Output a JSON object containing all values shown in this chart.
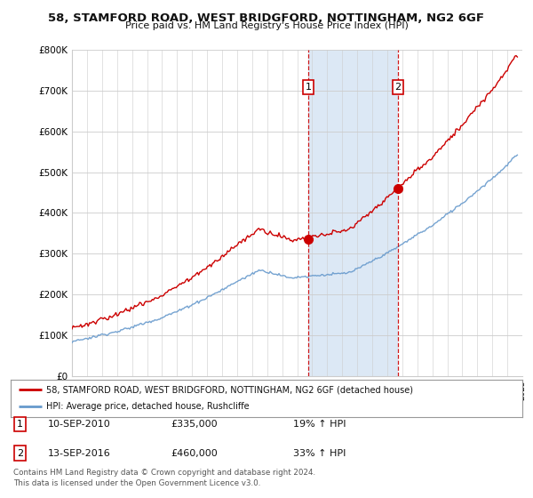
{
  "title": "58, STAMFORD ROAD, WEST BRIDGFORD, NOTTINGHAM, NG2 6GF",
  "subtitle": "Price paid vs. HM Land Registry's House Price Index (HPI)",
  "legend_line1": "58, STAMFORD ROAD, WEST BRIDGFORD, NOTTINGHAM, NG2 6GF (detached house)",
  "legend_line2": "HPI: Average price, detached house, Rushcliffe",
  "annotation1_label": "1",
  "annotation1_date": "10-SEP-2010",
  "annotation1_price": "£335,000",
  "annotation1_change": "19% ↑ HPI",
  "annotation2_label": "2",
  "annotation2_date": "13-SEP-2016",
  "annotation2_price": "£460,000",
  "annotation2_change": "33% ↑ HPI",
  "footnote1": "Contains HM Land Registry data © Crown copyright and database right 2024.",
  "footnote2": "This data is licensed under the Open Government Licence v3.0.",
  "property_color": "#cc0000",
  "hpi_color": "#6699cc",
  "background_color": "#ffffff",
  "plot_bg_color": "#ffffff",
  "shade_color": "#dce8f5",
  "vline_color": "#cc0000",
  "ylim": [
    0,
    800000
  ],
  "yticks": [
    0,
    100000,
    200000,
    300000,
    400000,
    500000,
    600000,
    700000,
    800000
  ],
  "sale1_x": 2010.75,
  "sale1_y": 335000,
  "sale2_x": 2016.71,
  "sale2_y": 460000,
  "xmin": 1995,
  "xmax": 2025
}
